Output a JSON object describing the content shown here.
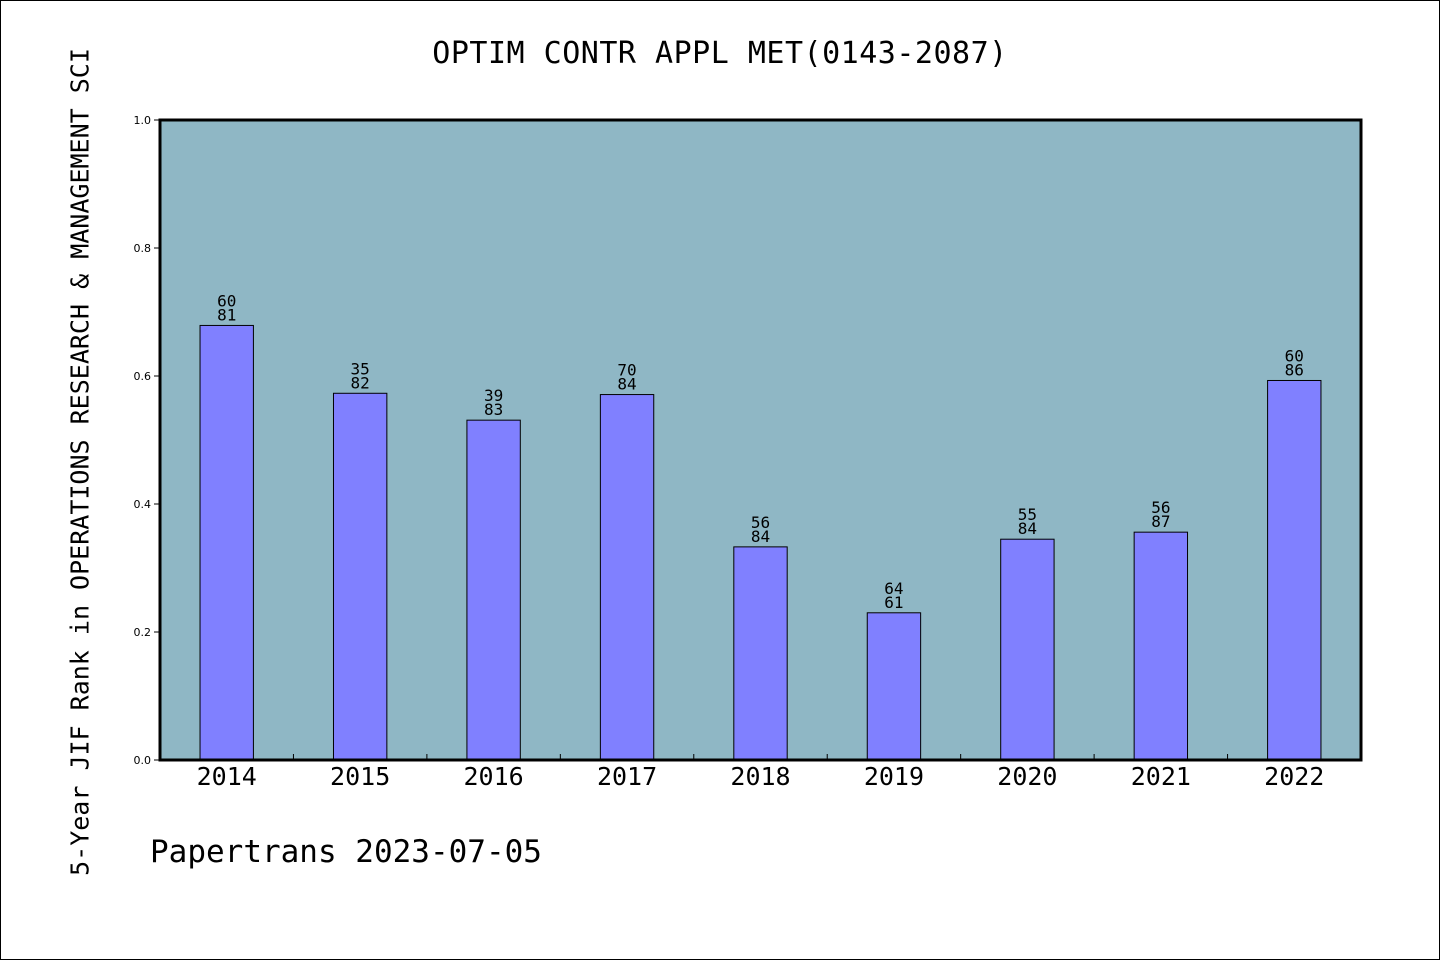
{
  "chart_data": {
    "type": "bar",
    "title": "OPTIM CONTR APPL MET(0143-2087)",
    "ylabel": "5-Year JIF Rank in OPERATIONS RESEARCH & MANAGEMENT SCI",
    "xlabel": "",
    "categories": [
      "2014",
      "2015",
      "2016",
      "2017",
      "2018",
      "2019",
      "2020",
      "2021",
      "2022"
    ],
    "values": [
      0.679,
      0.573,
      0.531,
      0.571,
      0.333,
      0.23,
      0.345,
      0.356,
      0.593
    ],
    "labels_top": [
      "60",
      "35",
      "39",
      "70",
      "56",
      "64",
      "55",
      "56",
      "60"
    ],
    "labels_bottom": [
      "81",
      "82",
      "83",
      "84",
      "84",
      "61",
      "84",
      "87",
      "86"
    ],
    "ylim": [
      0,
      1.0
    ],
    "yticks": [
      "0.0",
      "0.2",
      "0.4",
      "0.6",
      "0.8",
      "1.0"
    ],
    "grid": false,
    "colors": {
      "plot_background": "#8fb7c5",
      "bar_fill": "#8080ff",
      "bar_stroke": "#000000"
    }
  },
  "footer": "Papertrans 2023-07-05"
}
